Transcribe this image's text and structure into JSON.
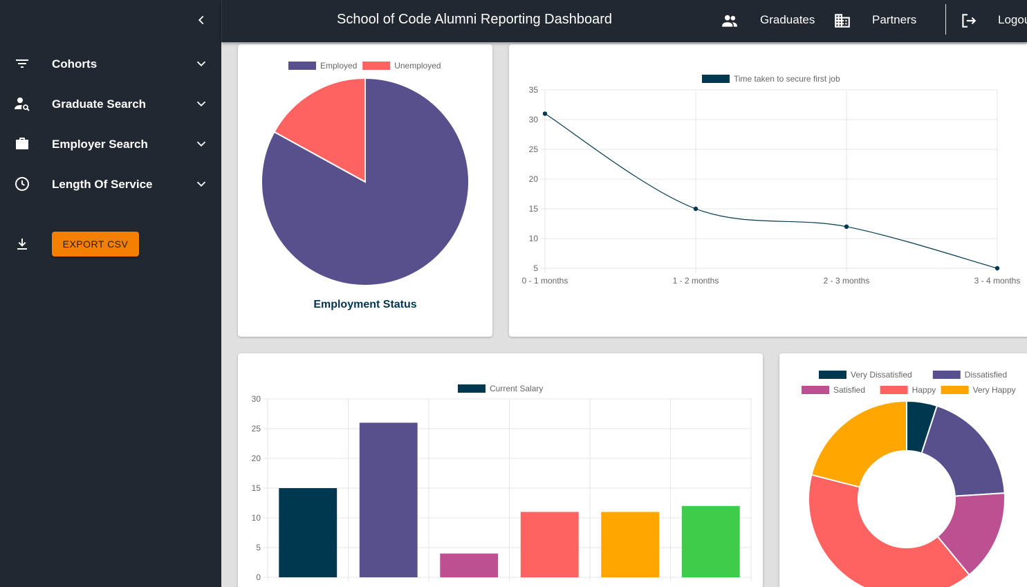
{
  "header": {
    "title": "School of Code Alumni Reporting Dashboard",
    "nav": [
      {
        "label": "Graduates",
        "icon": "people-icon"
      },
      {
        "label": "Partners",
        "icon": "building-icon"
      },
      {
        "label": "Logout",
        "icon": "logout-icon"
      }
    ]
  },
  "sidebar": {
    "items": [
      {
        "label": "Cohorts",
        "icon": "filter-icon"
      },
      {
        "label": "Graduate Search",
        "icon": "person-search-icon"
      },
      {
        "label": "Employer Search",
        "icon": "briefcase-icon"
      },
      {
        "label": "Length Of Service",
        "icon": "clock-icon"
      }
    ],
    "export_label": "EXPORT CSV"
  },
  "colors": {
    "navy": "#00384f",
    "purple": "#58508d",
    "magenta": "#bc5090",
    "coral": "#ff6361",
    "orange": "#ffa600",
    "green": "#3fcc4b",
    "accent": "#f57f00",
    "sidebar_bg": "#222831"
  },
  "chart_data": [
    {
      "type": "pie",
      "title": "Employment Status",
      "labels": [
        "Employed",
        "Unemployed"
      ],
      "values": [
        83,
        17
      ],
      "colors": [
        "#58508d",
        "#ff6361"
      ],
      "legend": "top"
    },
    {
      "type": "line",
      "series_name": "Time taken to secure first job",
      "categories": [
        "0 - 1 months",
        "1 - 2 months",
        "2 - 3 months",
        "3 - 4 months"
      ],
      "values": [
        31,
        15,
        12,
        5
      ],
      "ylim": [
        5,
        35
      ],
      "yticks": [
        5,
        10,
        15,
        20,
        25,
        30,
        35
      ],
      "color": "#00384f",
      "grid": true,
      "legend": "top"
    },
    {
      "type": "bar",
      "series_name": "Current Salary",
      "values": [
        15,
        26,
        4,
        11,
        11,
        12
      ],
      "colors": [
        "#00384f",
        "#58508d",
        "#bc5090",
        "#ff6361",
        "#ffa600",
        "#3fcc4b"
      ],
      "ylim": [
        0,
        30
      ],
      "yticks": [
        0,
        5,
        10,
        15,
        20,
        25,
        30
      ],
      "grid": true,
      "legend": "top"
    },
    {
      "type": "pie",
      "labels": [
        "Very Dissatisfied",
        "Dissatisfied",
        "Satisfied",
        "Happy",
        "Very Happy"
      ],
      "values": [
        5,
        19,
        15,
        40,
        21
      ],
      "colors": [
        "#00384f",
        "#58508d",
        "#bc5090",
        "#ff6361",
        "#ffa600"
      ],
      "legend": "top"
    }
  ]
}
